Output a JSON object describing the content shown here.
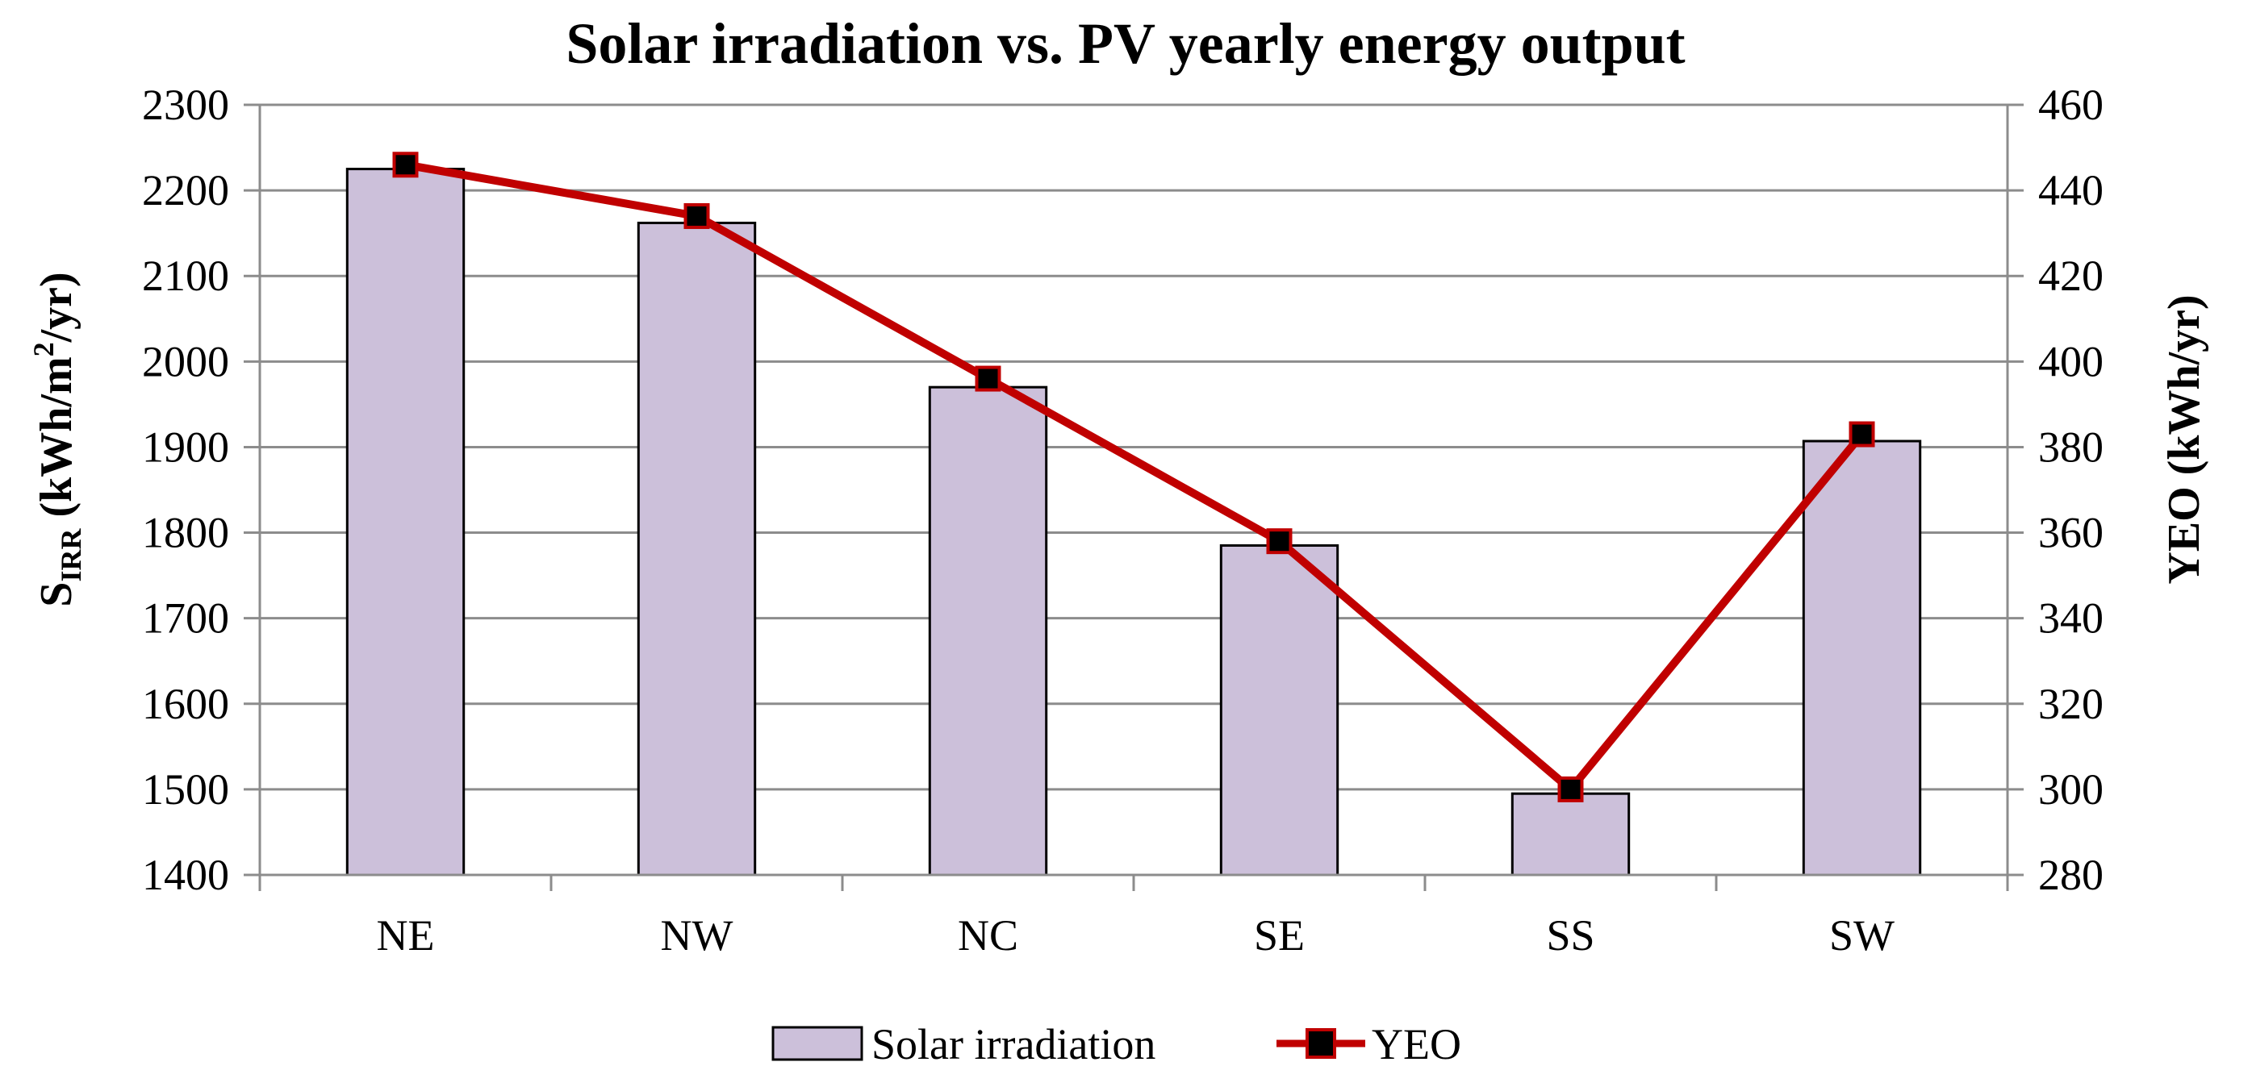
{
  "chart_data": {
    "type": "bar+line",
    "title": "Solar irradiation vs. PV yearly energy output",
    "categories": [
      "NE",
      "NW",
      "NC",
      "SE",
      "SS",
      "SW"
    ],
    "series": [
      {
        "name": "Solar irradiation",
        "kind": "bar",
        "axis": "left",
        "color": "#CCC0DA",
        "values": [
          2225,
          2162,
          1970,
          1785,
          1495,
          1907
        ]
      },
      {
        "name": "YEO",
        "kind": "line",
        "axis": "right",
        "color": "#C00000",
        "marker_color": "#000000",
        "values": [
          446,
          434,
          396,
          358,
          300,
          383
        ]
      }
    ],
    "y_left": {
      "label_main": "S",
      "label_sub": "IRR",
      "label_rest_1": " (kWh/m",
      "label_sup": "2",
      "label_rest_2": "/yr)",
      "ylim": [
        1400,
        2300
      ],
      "ticks": [
        "1400",
        "1500",
        "1600",
        "1700",
        "1800",
        "1900",
        "2000",
        "2100",
        "2200",
        "2300"
      ]
    },
    "y_right": {
      "label": "YEO (kWh/yr)",
      "ylim": [
        280,
        460
      ],
      "ticks": [
        "280",
        "300",
        "320",
        "340",
        "360",
        "380",
        "400",
        "420",
        "440",
        "460"
      ]
    },
    "grid": true,
    "legend_position": "bottom",
    "legend": [
      "Solar irradiation",
      "YEO"
    ]
  }
}
